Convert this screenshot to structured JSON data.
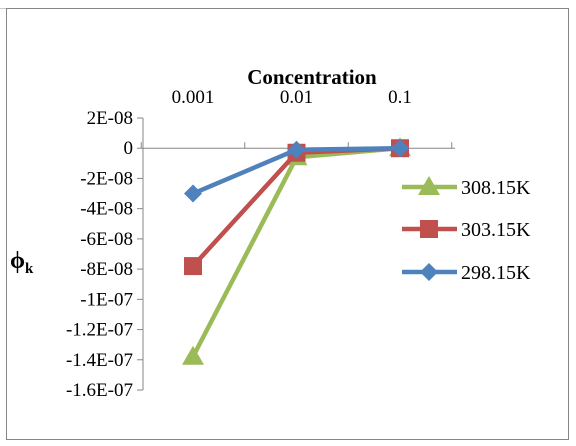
{
  "chart_data": {
    "type": "line",
    "title": "Concentration",
    "ylabel": "ϕ",
    "ylabel_sub": "k",
    "x_scale": "log",
    "x": [
      0.001,
      0.01,
      0.1
    ],
    "x_tick_labels": [
      "0.001",
      "0.01",
      "0.1"
    ],
    "y_ticks": [
      2e-08,
      0,
      -2e-08,
      -4e-08,
      -6e-08,
      -8e-08,
      -1e-07,
      -1.2e-07,
      -1.4e-07,
      -1.6e-07
    ],
    "y_tick_labels": [
      "2E-08",
      "0",
      "-2E-08",
      "-4E-08",
      "-6E-08",
      "-8E-08",
      "-1E-07",
      "-1.2E-07",
      "-1.4E-07",
      "-1.6E-07"
    ],
    "ylim": [
      -1.6e-07,
      2e-08
    ],
    "grid": false,
    "legend_position": "right",
    "series": [
      {
        "name": "308.15K",
        "color": "#9BBB59",
        "marker": "triangle",
        "values": [
          -1.38e-07,
          -6e-09,
          0
        ]
      },
      {
        "name": "303.15K",
        "color": "#C0504D",
        "marker": "square",
        "values": [
          -7.8e-08,
          -3e-09,
          0
        ]
      },
      {
        "name": "298.15K",
        "color": "#4F81BD",
        "marker": "diamond",
        "values": [
          -3e-08,
          -1e-09,
          0
        ]
      }
    ]
  }
}
